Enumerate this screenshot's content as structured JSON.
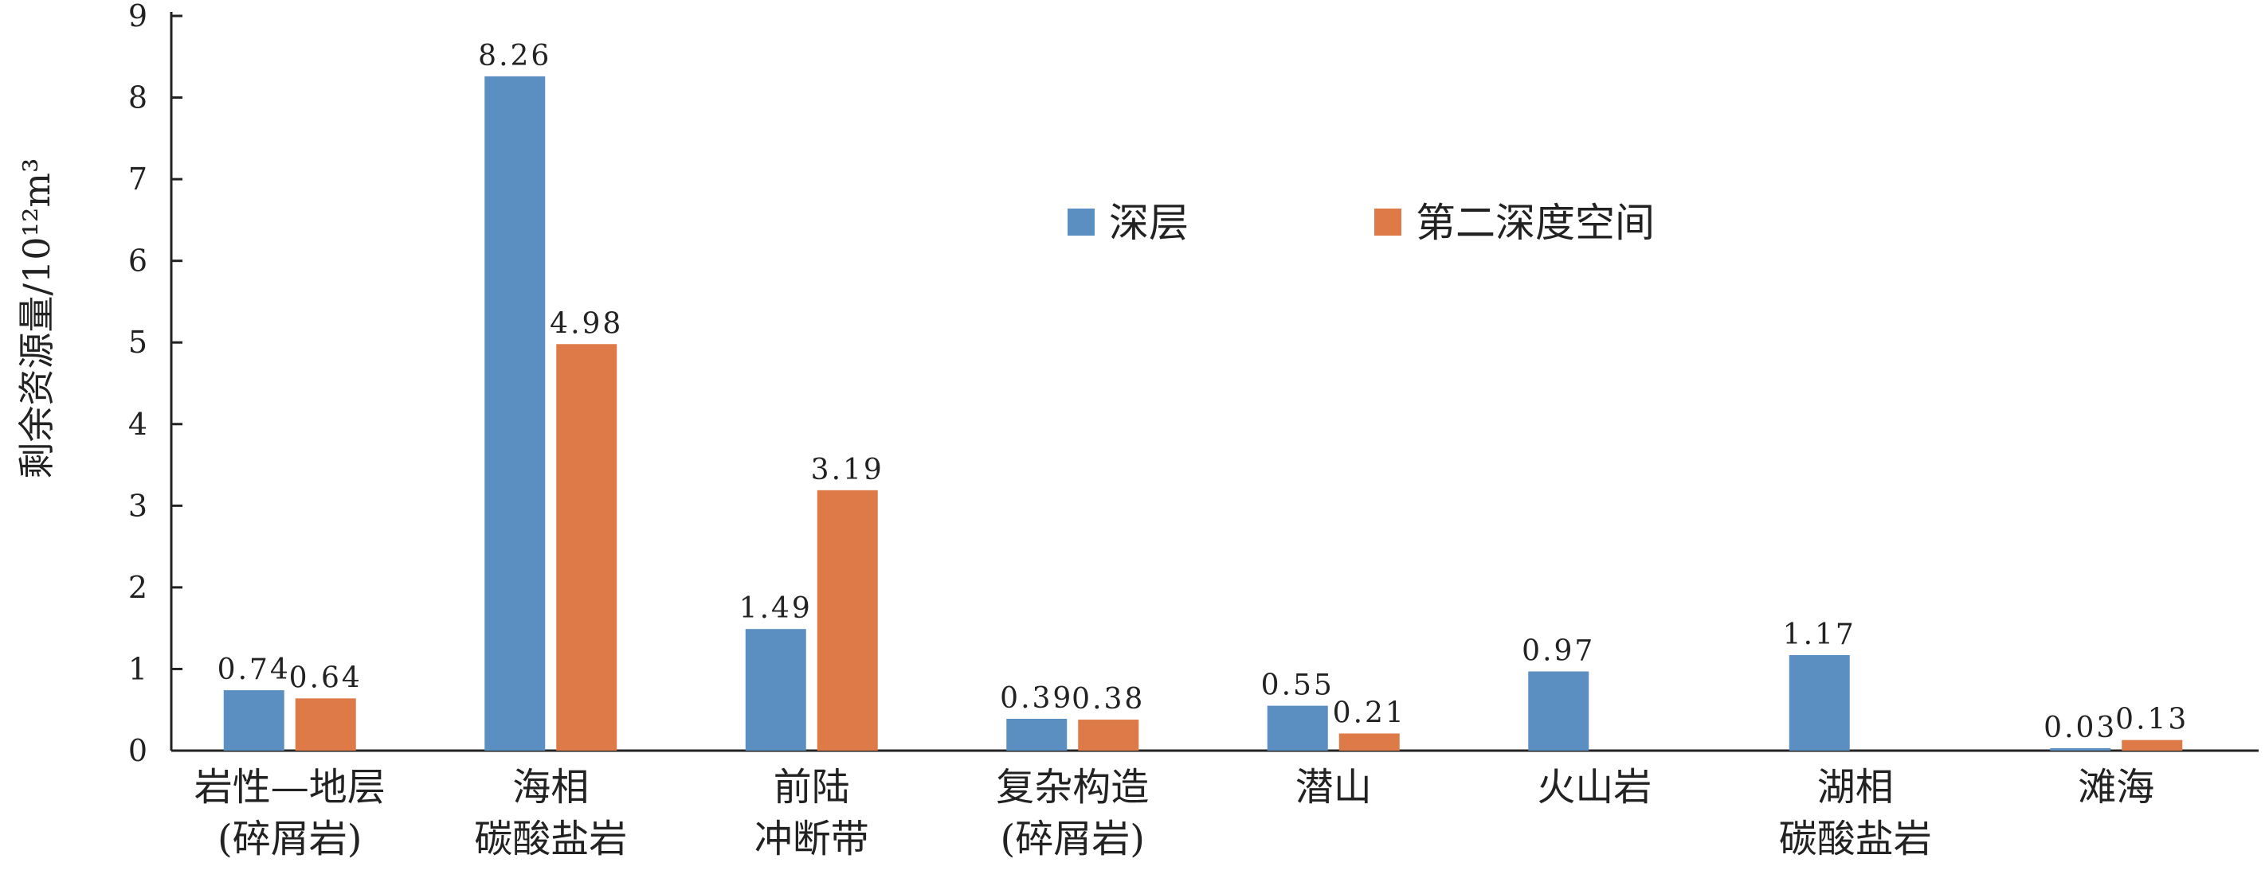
{
  "chart_data": {
    "type": "bar",
    "ylabel": "剩余资源量/10¹²m³",
    "ylim": [
      0,
      9
    ],
    "yticks": [
      "0",
      "1",
      "2",
      "3",
      "4",
      "5",
      "6",
      "7",
      "8",
      "9"
    ],
    "categories": [
      [
        "岩性—地层",
        "(碎屑岩)"
      ],
      [
        "海相",
        "碳酸盐岩"
      ],
      [
        "前陆",
        "冲断带"
      ],
      [
        "复杂构造",
        "(碎屑岩)"
      ],
      [
        "潜山"
      ],
      [
        "火山岩"
      ],
      [
        "湖相",
        "碳酸盐岩"
      ],
      [
        "滩海"
      ]
    ],
    "series": [
      {
        "name": "深层",
        "color": "#5b8fc2",
        "values": [
          0.74,
          8.26,
          1.49,
          0.39,
          0.55,
          0.97,
          1.17,
          0.03
        ],
        "labels": [
          "0.74",
          "8.26",
          "1.49",
          "0.39",
          "0.55",
          "0.97",
          "1.17",
          "0.03"
        ]
      },
      {
        "name": "第二深度空间",
        "color": "#dd7a47",
        "values": [
          0.64,
          4.98,
          3.19,
          0.38,
          0.21,
          null,
          null,
          0.13
        ],
        "labels": [
          "0.64",
          "4.98",
          "3.19",
          "0.38",
          "0.21",
          null,
          null,
          "0.13"
        ]
      }
    ],
    "legend_position": "top-center",
    "grid": false
  }
}
